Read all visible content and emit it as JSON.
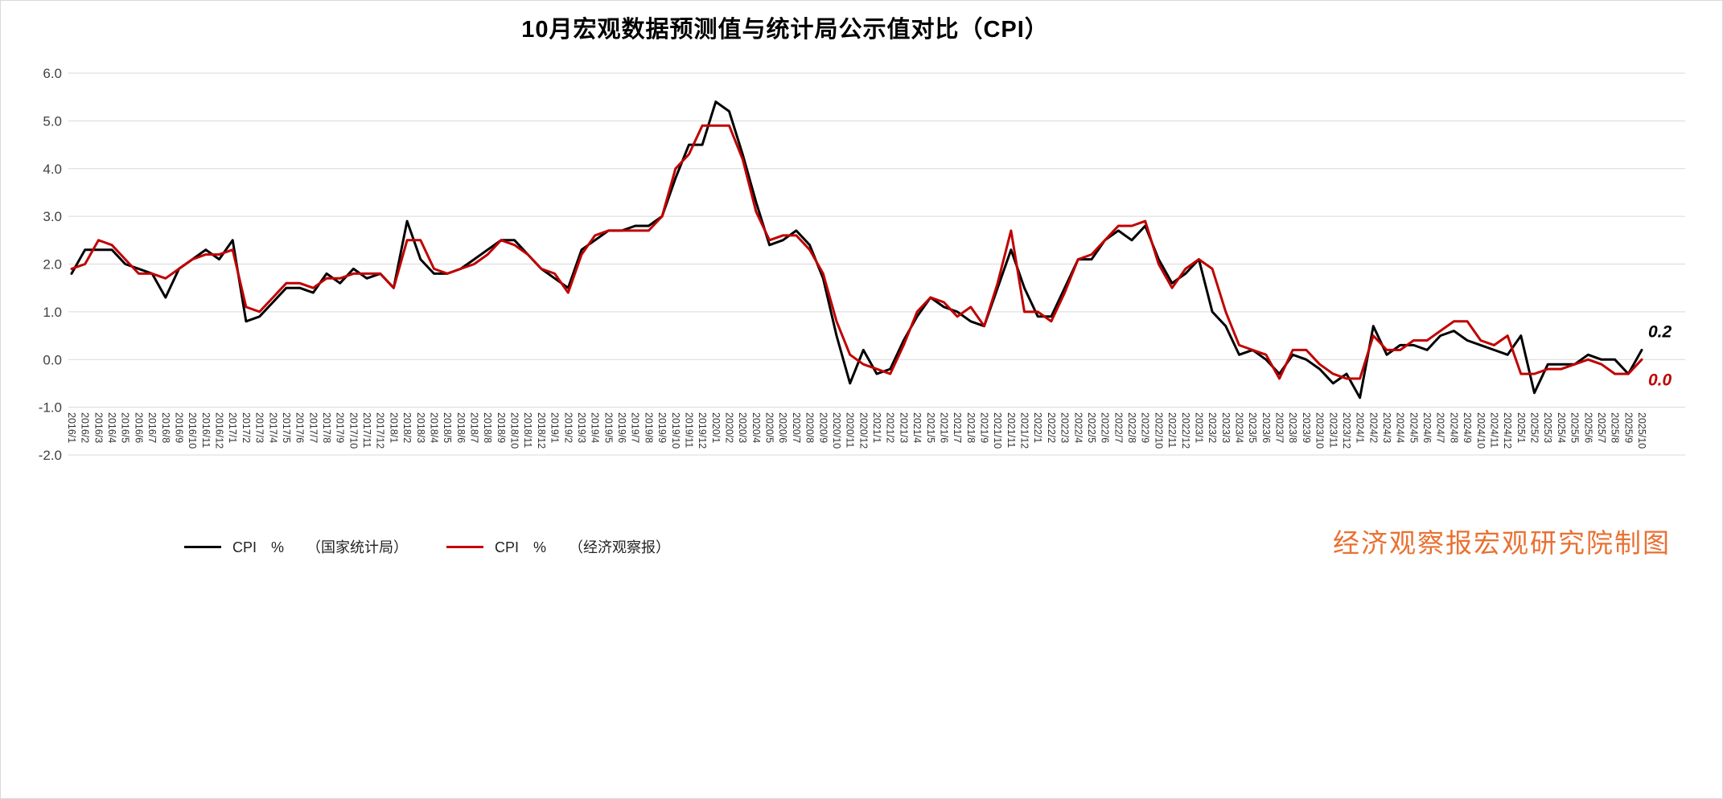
{
  "title": "10月宏观数据预测值与统计局公示值对比（CPI）",
  "credit": "经济观察报宏观研究院制图",
  "chart_data": {
    "type": "line",
    "title": "10月宏观数据预测值与统计局公示值对比（CPI）",
    "xlabel": "",
    "ylabel": "",
    "ylim": [
      -2.0,
      6.0
    ],
    "y_ticks": [
      6,
      5,
      4,
      3,
      2,
      1,
      0,
      -1,
      -2
    ],
    "grid": true,
    "legend_position": "bottom-left",
    "categories": [
      "2016/1",
      "2016/2",
      "2016/3",
      "2016/4",
      "2016/5",
      "2016/6",
      "2016/7",
      "2016/8",
      "2016/9",
      "2016/10",
      "2016/11",
      "2016/12",
      "2017/1",
      "2017/2",
      "2017/3",
      "2017/4",
      "2017/5",
      "2017/6",
      "2017/7",
      "2017/8",
      "2017/9",
      "2017/10",
      "2017/11",
      "2017/12",
      "2018/1",
      "2018/2",
      "2018/3",
      "2018/4",
      "2018/5",
      "2018/6",
      "2018/7",
      "2018/8",
      "2018/9",
      "2018/10",
      "2018/11",
      "2018/12",
      "2019/1",
      "2019/2",
      "2019/3",
      "2019/4",
      "2019/5",
      "2019/6",
      "2019/7",
      "2019/8",
      "2019/9",
      "2019/10",
      "2019/11",
      "2019/12",
      "2020/1",
      "2020/2",
      "2020/3",
      "2020/4",
      "2020/5",
      "2020/6",
      "2020/7",
      "2020/8",
      "2020/9",
      "2020/10",
      "2020/11",
      "2020/12",
      "2021/1",
      "2021/2",
      "2021/3",
      "2021/4",
      "2021/5",
      "2021/6",
      "2021/7",
      "2021/8",
      "2021/9",
      "2021/10",
      "2021/11",
      "2021/12",
      "2022/1",
      "2022/2",
      "2022/3",
      "2022/4",
      "2022/5",
      "2022/6",
      "2022/7",
      "2022/8",
      "2022/9",
      "2022/10",
      "2022/11",
      "2022/12",
      "2023/1",
      "2023/2",
      "2023/3",
      "2023/4",
      "2023/5",
      "2023/6",
      "2023/7",
      "2023/8",
      "2023/9",
      "2023/10",
      "2023/11",
      "2023/12",
      "2024/1",
      "2024/2",
      "2024/3",
      "2024/4",
      "2024/5",
      "2024/6",
      "2024/7",
      "2024/8",
      "2024/9",
      "2024/10",
      "2024/11",
      "2024/12",
      "2025/1",
      "2025/2",
      "2025/3",
      "2025/4",
      "2025/5",
      "2025/6",
      "2025/7",
      "2025/8",
      "2025/9",
      "2025/10"
    ],
    "series": [
      {
        "name": "CPI　%",
        "source": "（国家统计局）",
        "color": "#000000",
        "values": [
          1.8,
          2.3,
          2.3,
          2.3,
          2.0,
          1.9,
          1.8,
          1.3,
          1.9,
          2.1,
          2.3,
          2.1,
          2.5,
          0.8,
          0.9,
          1.2,
          1.5,
          1.5,
          1.4,
          1.8,
          1.6,
          1.9,
          1.7,
          1.8,
          1.5,
          2.9,
          2.1,
          1.8,
          1.8,
          1.9,
          2.1,
          2.3,
          2.5,
          2.5,
          2.2,
          1.9,
          1.7,
          1.5,
          2.3,
          2.5,
          2.7,
          2.7,
          2.8,
          2.8,
          3.0,
          3.8,
          4.5,
          4.5,
          5.4,
          5.2,
          4.3,
          3.3,
          2.4,
          2.5,
          2.7,
          2.4,
          1.7,
          0.5,
          -0.5,
          0.2,
          -0.3,
          -0.2,
          0.4,
          0.9,
          1.3,
          1.1,
          1.0,
          0.8,
          0.7,
          1.5,
          2.3,
          1.5,
          0.9,
          0.9,
          1.5,
          2.1,
          2.1,
          2.5,
          2.7,
          2.5,
          2.8,
          2.1,
          1.6,
          1.8,
          2.1,
          1.0,
          0.7,
          0.1,
          0.2,
          0.0,
          -0.3,
          0.1,
          0.0,
          -0.2,
          -0.5,
          -0.3,
          -0.8,
          0.7,
          0.1,
          0.3,
          0.3,
          0.2,
          0.5,
          0.6,
          0.4,
          0.3,
          0.2,
          0.1,
          0.5,
          -0.7,
          -0.1,
          -0.1,
          -0.1,
          0.1,
          0.0,
          0.0,
          -0.3,
          0.2
        ]
      },
      {
        "name": "CPI　%",
        "source": "（经济观察报）",
        "color": "#C00000",
        "values": [
          1.9,
          2.0,
          2.5,
          2.4,
          2.1,
          1.8,
          1.8,
          1.7,
          1.9,
          2.1,
          2.2,
          2.2,
          2.3,
          1.1,
          1.0,
          1.3,
          1.6,
          1.6,
          1.5,
          1.7,
          1.7,
          1.8,
          1.8,
          1.8,
          1.5,
          2.5,
          2.5,
          1.9,
          1.8,
          1.9,
          2.0,
          2.2,
          2.5,
          2.4,
          2.2,
          1.9,
          1.8,
          1.4,
          2.2,
          2.6,
          2.7,
          2.7,
          2.7,
          2.7,
          3.0,
          4.0,
          4.3,
          4.9,
          4.9,
          4.9,
          4.2,
          3.1,
          2.5,
          2.6,
          2.6,
          2.3,
          1.8,
          0.8,
          0.1,
          -0.1,
          -0.2,
          -0.3,
          0.3,
          1.0,
          1.3,
          1.2,
          0.9,
          1.1,
          0.7,
          1.6,
          2.7,
          1.0,
          1.0,
          0.8,
          1.4,
          2.1,
          2.2,
          2.5,
          2.8,
          2.8,
          2.9,
          2.0,
          1.5,
          1.9,
          2.1,
          1.9,
          1.0,
          0.3,
          0.2,
          0.1,
          -0.4,
          0.2,
          0.2,
          -0.1,
          -0.3,
          -0.4,
          -0.4,
          0.5,
          0.2,
          0.2,
          0.4,
          0.4,
          0.6,
          0.8,
          0.8,
          0.4,
          0.3,
          0.5,
          -0.3,
          -0.3,
          -0.2,
          -0.2,
          -0.1,
          0.0,
          -0.1,
          -0.3,
          -0.3,
          0.0
        ]
      }
    ],
    "annotations": [
      {
        "text": "0.2",
        "color": "#000000",
        "series": 0
      },
      {
        "text": "0.0",
        "color": "#C00000",
        "series": 1
      }
    ]
  }
}
